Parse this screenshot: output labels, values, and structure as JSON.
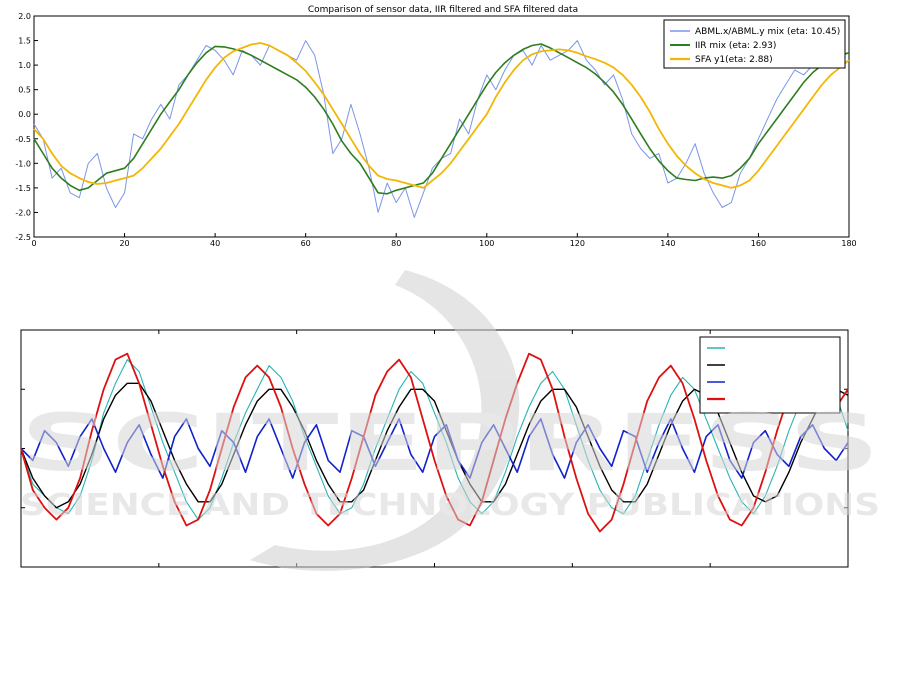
{
  "chart_data": [
    {
      "type": "line",
      "title": "Comparison of sensor data, IIR filtered and SFA filtered data",
      "xlim": [
        0,
        180
      ],
      "ylim": [
        -2.5,
        2.0
      ],
      "xticks": [
        "0",
        "20",
        "40",
        "60",
        "80",
        "100",
        "120",
        "140",
        "160",
        "180"
      ],
      "yticks": [
        "-2.5",
        "-2.0",
        "-1.5",
        "-1.0",
        "-0.5",
        "0.0",
        "0.5",
        "1.0",
        "1.5",
        "2.0"
      ],
      "grid": false,
      "legend_position": "top-right",
      "series": [
        {
          "name": "ABML.x/ABML.y mix (eta: 10.45)",
          "color": "#7b96e8",
          "x": [
            0,
            2,
            4,
            6,
            8,
            10,
            12,
            14,
            16,
            18,
            20,
            22,
            24,
            26,
            28,
            30,
            32,
            34,
            36,
            38,
            40,
            42,
            44,
            46,
            48,
            50,
            52,
            54,
            56,
            58,
            60,
            62,
            64,
            66,
            68,
            70,
            72,
            74,
            76,
            78,
            80,
            82,
            84,
            86,
            88,
            90,
            92,
            94,
            96,
            98,
            100,
            102,
            104,
            106,
            108,
            110,
            112,
            114,
            116,
            118,
            120,
            122,
            124,
            126,
            128,
            130,
            132,
            134,
            136,
            138,
            140,
            142,
            144,
            146,
            148,
            150,
            152,
            154,
            156,
            158,
            160,
            162,
            164,
            166,
            168,
            170,
            172,
            174,
            176,
            178,
            180
          ],
          "y": [
            -0.2,
            -0.5,
            -1.3,
            -1.1,
            -1.6,
            -1.7,
            -1.0,
            -0.8,
            -1.5,
            -1.9,
            -1.6,
            -0.4,
            -0.5,
            -0.1,
            0.2,
            -0.1,
            0.6,
            0.8,
            1.1,
            1.4,
            1.3,
            1.1,
            0.8,
            1.3,
            1.2,
            1.0,
            1.4,
            1.3,
            1.2,
            1.1,
            1.5,
            1.2,
            0.4,
            -0.8,
            -0.5,
            0.2,
            -0.4,
            -1.1,
            -2.0,
            -1.4,
            -1.8,
            -1.5,
            -2.1,
            -1.6,
            -1.1,
            -0.9,
            -0.8,
            -0.1,
            -0.4,
            0.3,
            0.8,
            0.5,
            0.9,
            1.2,
            1.3,
            1.0,
            1.4,
            1.1,
            1.2,
            1.3,
            1.5,
            1.1,
            0.9,
            0.6,
            0.8,
            0.3,
            -0.4,
            -0.7,
            -0.9,
            -0.8,
            -1.4,
            -1.3,
            -1.0,
            -0.6,
            -1.2,
            -1.6,
            -1.9,
            -1.8,
            -1.2,
            -0.9,
            -0.5,
            -0.1,
            0.3,
            0.6,
            0.9,
            0.8,
            1.0,
            1.3,
            1.1,
            1.0,
            1.1
          ]
        },
        {
          "name": "IIR mix (eta: 2.93)",
          "color": "#2e7d1f",
          "x": [
            0,
            2,
            4,
            6,
            8,
            10,
            12,
            14,
            16,
            18,
            20,
            22,
            24,
            26,
            28,
            30,
            32,
            34,
            36,
            38,
            40,
            42,
            44,
            46,
            48,
            50,
            52,
            54,
            56,
            58,
            60,
            62,
            64,
            66,
            68,
            70,
            72,
            74,
            76,
            78,
            80,
            82,
            84,
            86,
            88,
            90,
            92,
            94,
            96,
            98,
            100,
            102,
            104,
            106,
            108,
            110,
            112,
            114,
            116,
            118,
            120,
            122,
            124,
            126,
            128,
            130,
            132,
            134,
            136,
            138,
            140,
            142,
            144,
            146,
            148,
            150,
            152,
            154,
            156,
            158,
            160,
            162,
            164,
            166,
            168,
            170,
            172,
            174,
            176,
            178,
            180
          ],
          "y": [
            -0.5,
            -0.8,
            -1.1,
            -1.3,
            -1.45,
            -1.55,
            -1.5,
            -1.35,
            -1.2,
            -1.15,
            -1.1,
            -0.9,
            -0.6,
            -0.3,
            0.0,
            0.25,
            0.5,
            0.8,
            1.05,
            1.25,
            1.38,
            1.37,
            1.33,
            1.28,
            1.2,
            1.1,
            1.0,
            0.9,
            0.8,
            0.7,
            0.55,
            0.35,
            0.1,
            -0.2,
            -0.55,
            -0.8,
            -1.0,
            -1.3,
            -1.6,
            -1.62,
            -1.55,
            -1.5,
            -1.45,
            -1.4,
            -1.2,
            -0.9,
            -0.6,
            -0.3,
            0.0,
            0.3,
            0.6,
            0.85,
            1.05,
            1.2,
            1.32,
            1.4,
            1.43,
            1.35,
            1.25,
            1.15,
            1.05,
            0.95,
            0.82,
            0.65,
            0.45,
            0.2,
            -0.1,
            -0.4,
            -0.7,
            -0.95,
            -1.15,
            -1.3,
            -1.33,
            -1.35,
            -1.3,
            -1.28,
            -1.3,
            -1.25,
            -1.1,
            -0.9,
            -0.6,
            -0.35,
            -0.1,
            0.15,
            0.4,
            0.65,
            0.85,
            1.0,
            1.1,
            1.2,
            1.25
          ]
        },
        {
          "name": "SFA y1(eta: 2.88)",
          "color": "#f2b705",
          "x": [
            0,
            2,
            4,
            6,
            8,
            10,
            12,
            14,
            16,
            18,
            20,
            22,
            24,
            26,
            28,
            30,
            32,
            34,
            36,
            38,
            40,
            42,
            44,
            46,
            48,
            50,
            52,
            54,
            56,
            58,
            60,
            62,
            64,
            66,
            68,
            70,
            72,
            74,
            76,
            78,
            80,
            82,
            84,
            86,
            88,
            90,
            92,
            94,
            96,
            98,
            100,
            102,
            104,
            106,
            108,
            110,
            112,
            114,
            116,
            118,
            120,
            122,
            124,
            126,
            128,
            130,
            132,
            134,
            136,
            138,
            140,
            142,
            144,
            146,
            148,
            150,
            152,
            154,
            156,
            158,
            160,
            162,
            164,
            166,
            168,
            170,
            172,
            174,
            176,
            178,
            180
          ],
          "y": [
            -0.3,
            -0.5,
            -0.8,
            -1.05,
            -1.2,
            -1.3,
            -1.38,
            -1.42,
            -1.4,
            -1.35,
            -1.3,
            -1.25,
            -1.1,
            -0.9,
            -0.7,
            -0.45,
            -0.2,
            0.1,
            0.4,
            0.7,
            0.95,
            1.15,
            1.28,
            1.35,
            1.42,
            1.45,
            1.4,
            1.3,
            1.2,
            1.05,
            0.88,
            0.65,
            0.4,
            0.1,
            -0.2,
            -0.5,
            -0.8,
            -1.05,
            -1.25,
            -1.32,
            -1.35,
            -1.4,
            -1.45,
            -1.5,
            -1.35,
            -1.2,
            -1.0,
            -0.75,
            -0.5,
            -0.25,
            0.0,
            0.35,
            0.65,
            0.9,
            1.1,
            1.22,
            1.28,
            1.3,
            1.32,
            1.3,
            1.25,
            1.18,
            1.12,
            1.05,
            0.95,
            0.8,
            0.6,
            0.35,
            0.05,
            -0.3,
            -0.6,
            -0.85,
            -1.05,
            -1.2,
            -1.32,
            -1.4,
            -1.45,
            -1.5,
            -1.45,
            -1.35,
            -1.15,
            -0.9,
            -0.65,
            -0.4,
            -0.15,
            0.1,
            0.35,
            0.6,
            0.8,
            0.95,
            1.1
          ]
        }
      ]
    },
    {
      "type": "line",
      "title": "",
      "grid": false,
      "legend_position": "top-right",
      "legend_colors": [
        "#29b3b3",
        "#000000",
        "#1122cc",
        "#dd1111"
      ],
      "series": [
        {
          "color": "#29b3b3",
          "values": [
            0.0,
            -0.6,
            -0.8,
            -1.0,
            -1.1,
            -0.8,
            -0.2,
            0.6,
            1.1,
            1.5,
            1.3,
            0.7,
            0.1,
            -0.4,
            -0.9,
            -1.2,
            -1.0,
            -0.5,
            0.1,
            0.6,
            1.0,
            1.4,
            1.2,
            0.8,
            0.2,
            -0.3,
            -0.8,
            -1.1,
            -1.0,
            -0.6,
            0.0,
            0.5,
            1.0,
            1.3,
            1.1,
            0.6,
            0.1,
            -0.5,
            -0.9,
            -1.1,
            -0.9,
            -0.4,
            0.2,
            0.7,
            1.1,
            1.3,
            1.0,
            0.4,
            -0.2,
            -0.7,
            -1.0,
            -1.1,
            -0.8,
            -0.2,
            0.4,
            0.9,
            1.2,
            1.0,
            0.5,
            0.0,
            -0.5,
            -0.9,
            -1.1,
            -0.8,
            -0.3,
            0.3,
            0.8,
            1.2,
            1.3,
            0.9,
            0.3
          ]
        },
        {
          "color": "#000000",
          "values": [
            0.0,
            -0.5,
            -0.8,
            -1.0,
            -0.9,
            -0.6,
            -0.1,
            0.5,
            0.9,
            1.1,
            1.1,
            0.8,
            0.3,
            -0.2,
            -0.6,
            -0.9,
            -0.9,
            -0.6,
            -0.1,
            0.4,
            0.8,
            1.0,
            1.0,
            0.7,
            0.3,
            -0.2,
            -0.6,
            -0.9,
            -0.9,
            -0.7,
            -0.2,
            0.3,
            0.7,
            1.0,
            1.0,
            0.8,
            0.3,
            -0.2,
            -0.6,
            -0.9,
            -0.9,
            -0.6,
            -0.1,
            0.4,
            0.8,
            1.0,
            1.0,
            0.7,
            0.2,
            -0.3,
            -0.7,
            -0.9,
            -0.9,
            -0.6,
            -0.1,
            0.4,
            0.8,
            1.0,
            0.9,
            0.6,
            0.1,
            -0.4,
            -0.8,
            -0.9,
            -0.8,
            -0.4,
            0.1,
            0.5,
            0.9,
            1.0,
            0.9
          ]
        },
        {
          "color": "#1122cc",
          "values": [
            0.0,
            -0.2,
            0.3,
            0.1,
            -0.3,
            0.2,
            0.5,
            0.0,
            -0.4,
            0.1,
            0.4,
            -0.1,
            -0.5,
            0.2,
            0.5,
            0.0,
            -0.3,
            0.3,
            0.1,
            -0.4,
            0.2,
            0.5,
            0.0,
            -0.5,
            0.1,
            0.4,
            -0.2,
            -0.4,
            0.3,
            0.2,
            -0.3,
            0.1,
            0.5,
            -0.1,
            -0.4,
            0.2,
            0.4,
            -0.2,
            -0.5,
            0.1,
            0.4,
            0.0,
            -0.4,
            0.2,
            0.5,
            -0.1,
            -0.5,
            0.1,
            0.4,
            0.0,
            -0.3,
            0.3,
            0.2,
            -0.4,
            0.1,
            0.5,
            0.0,
            -0.4,
            0.2,
            0.4,
            -0.2,
            -0.5,
            0.1,
            0.3,
            -0.1,
            -0.3,
            0.2,
            0.4,
            0.0,
            -0.2,
            0.1
          ]
        },
        {
          "color": "#dd1111",
          "values": [
            0.0,
            -0.7,
            -1.0,
            -1.2,
            -1.0,
            -0.5,
            0.3,
            1.0,
            1.5,
            1.6,
            1.1,
            0.4,
            -0.3,
            -0.9,
            -1.3,
            -1.2,
            -0.7,
            0.0,
            0.7,
            1.2,
            1.4,
            1.2,
            0.7,
            0.0,
            -0.6,
            -1.1,
            -1.3,
            -1.1,
            -0.5,
            0.2,
            0.9,
            1.3,
            1.5,
            1.2,
            0.5,
            -0.2,
            -0.8,
            -1.2,
            -1.3,
            -0.9,
            -0.2,
            0.5,
            1.1,
            1.6,
            1.5,
            1.0,
            0.2,
            -0.5,
            -1.1,
            -1.4,
            -1.2,
            -0.6,
            0.1,
            0.8,
            1.2,
            1.4,
            1.1,
            0.5,
            -0.2,
            -0.8,
            -1.2,
            -1.3,
            -1.0,
            -0.4,
            0.3,
            0.9,
            1.3,
            1.4,
            1.1,
            0.7,
            1.0
          ]
        }
      ]
    }
  ],
  "watermark": {
    "line1": "SCITEPRESS",
    "line2": "SCIENCE AND TECHNOLOGY PUBLICATIONS"
  }
}
